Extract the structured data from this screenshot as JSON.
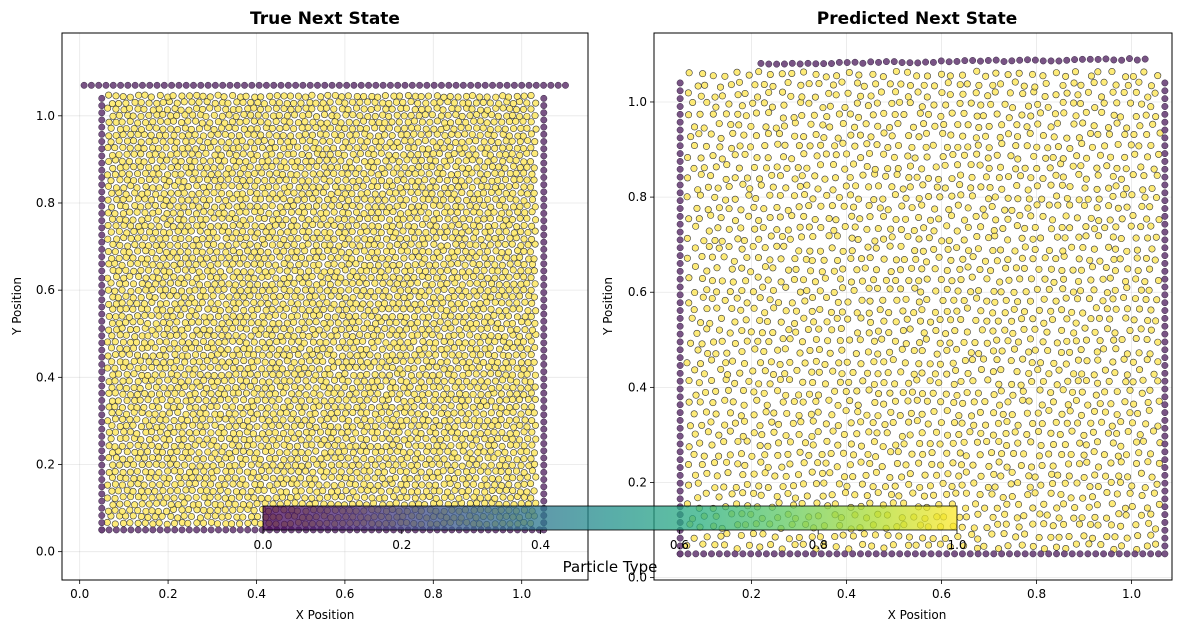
{
  "chart_data": [
    {
      "type": "scatter",
      "title": "True Next State",
      "xlabel": "X Position",
      "ylabel": "Y Position",
      "xlim": [
        -0.04,
        1.15
      ],
      "ylim": [
        -0.065,
        1.19
      ],
      "xticks": [
        "0.0",
        "0.2",
        "0.4",
        "0.6",
        "0.8",
        "1.0"
      ],
      "yticks": [
        "0.0",
        "0.2",
        "0.4",
        "0.6",
        "0.8",
        "1.0"
      ],
      "grid": true,
      "series": [
        {
          "particle_type": 0,
          "role": "boundary",
          "color": "#6a4178",
          "walls": {
            "top_row": {
              "y": 1.07,
              "x_range": [
                0.01,
                1.1
              ]
            },
            "left": {
              "x": 0.05,
              "y_range": [
                0.05,
                1.05
              ]
            },
            "right": {
              "x": 1.05,
              "y_range": [
                0.05,
                1.05
              ]
            },
            "bottom": {
              "y": 0.05,
              "x_range": [
                0.05,
                1.05
              ]
            }
          }
        },
        {
          "particle_type": 1,
          "role": "fluid",
          "color": "#fde44a",
          "region": {
            "x_range": [
              0.065,
              1.035
            ],
            "y_range": [
              0.065,
              1.055
            ]
          },
          "spacing": 0.0165
        }
      ]
    },
    {
      "type": "scatter",
      "title": "Predicted Next State",
      "xlabel": "X Position",
      "ylabel": "Y Position",
      "xlim": [
        -0.005,
        1.085
      ],
      "ylim": [
        -0.005,
        1.145
      ],
      "xticks": [
        "0.2",
        "0.4",
        "0.6",
        "0.8",
        "1.0"
      ],
      "yticks": [
        "0.0",
        "0.2",
        "0.4",
        "0.6",
        "0.8",
        "1.0"
      ],
      "grid": true,
      "series": [
        {
          "particle_type": 0,
          "role": "boundary",
          "color": "#6a4178",
          "walls": {
            "top_row": {
              "y_range": [
                1.08,
                1.09
              ],
              "x_range": [
                0.22,
                1.04
              ]
            },
            "left": {
              "x": 0.05,
              "y_range": [
                0.05,
                1.05
              ]
            },
            "right": {
              "x": 1.07,
              "y_range": [
                0.05,
                1.05
              ]
            },
            "bottom": {
              "y": 0.05,
              "x_range": [
                0.05,
                1.07
              ]
            }
          }
        },
        {
          "particle_type": 1,
          "role": "fluid",
          "color": "#fde44a",
          "region": {
            "x_range": [
              0.07,
              1.055
            ],
            "y_range": [
              0.065,
              1.065
            ]
          },
          "spacing": 0.024
        }
      ]
    }
  ],
  "colorbar": {
    "label": "Particle Type",
    "ticks": [
      "0.0",
      "0.2",
      "0.4",
      "0.6",
      "0.8",
      "1.0"
    ],
    "range": [
      0,
      1
    ],
    "cmap": "viridis",
    "alpha": 0.75
  }
}
